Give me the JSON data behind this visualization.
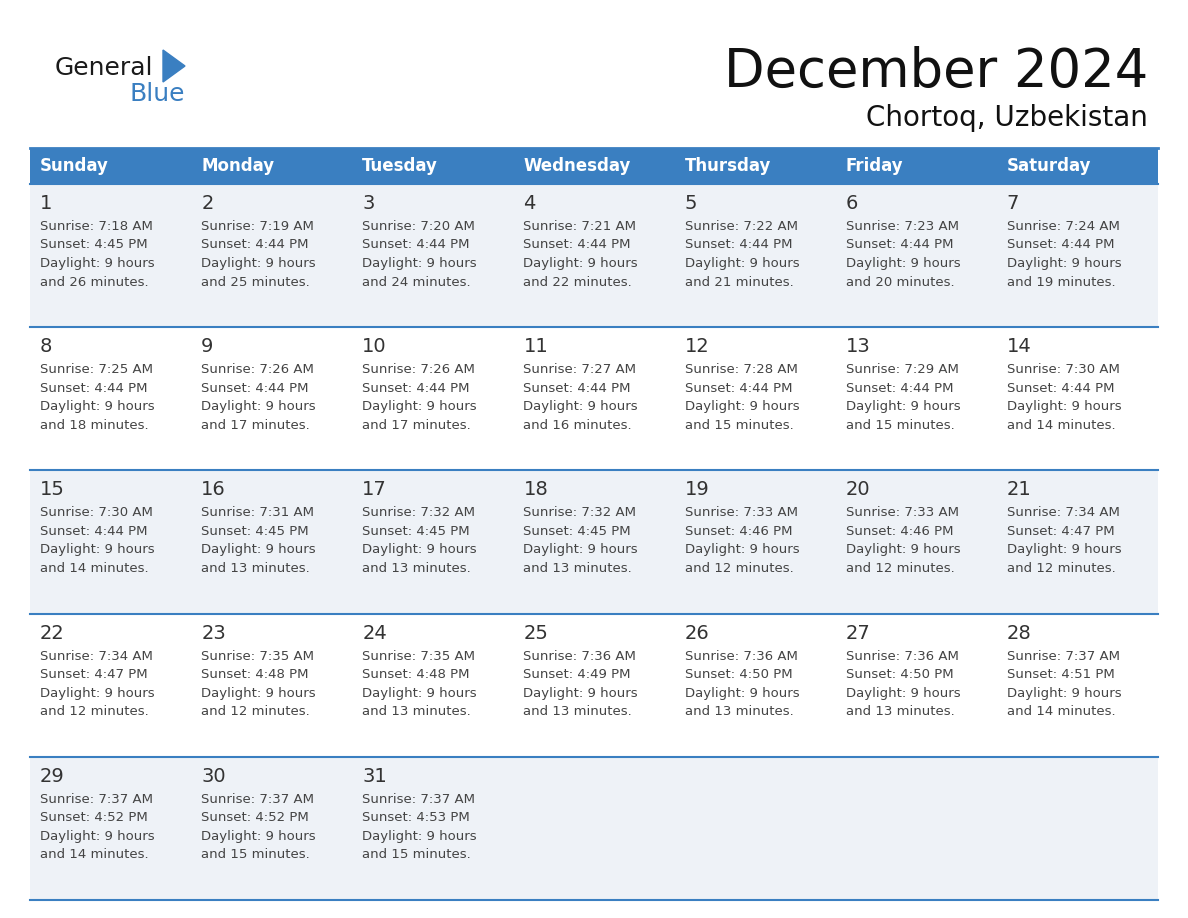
{
  "title": "December 2024",
  "subtitle": "Chortoq, Uzbekistan",
  "header_bg": "#3a7fc1",
  "header_text_color": "#FFFFFF",
  "row_bg_even": "#eef2f7",
  "row_bg_odd": "#FFFFFF",
  "border_color": "#3a7fc1",
  "text_color": "#444444",
  "day_num_color": "#333333",
  "days_of_week": [
    "Sunday",
    "Monday",
    "Tuesday",
    "Wednesday",
    "Thursday",
    "Friday",
    "Saturday"
  ],
  "weeks": [
    [
      {
        "day": 1,
        "sunrise": "7:18 AM",
        "sunset": "4:45 PM",
        "daylight": "9 hours and 26 minutes."
      },
      {
        "day": 2,
        "sunrise": "7:19 AM",
        "sunset": "4:44 PM",
        "daylight": "9 hours and 25 minutes."
      },
      {
        "day": 3,
        "sunrise": "7:20 AM",
        "sunset": "4:44 PM",
        "daylight": "9 hours and 24 minutes."
      },
      {
        "day": 4,
        "sunrise": "7:21 AM",
        "sunset": "4:44 PM",
        "daylight": "9 hours and 22 minutes."
      },
      {
        "day": 5,
        "sunrise": "7:22 AM",
        "sunset": "4:44 PM",
        "daylight": "9 hours and 21 minutes."
      },
      {
        "day": 6,
        "sunrise": "7:23 AM",
        "sunset": "4:44 PM",
        "daylight": "9 hours and 20 minutes."
      },
      {
        "day": 7,
        "sunrise": "7:24 AM",
        "sunset": "4:44 PM",
        "daylight": "9 hours and 19 minutes."
      }
    ],
    [
      {
        "day": 8,
        "sunrise": "7:25 AM",
        "sunset": "4:44 PM",
        "daylight": "9 hours and 18 minutes."
      },
      {
        "day": 9,
        "sunrise": "7:26 AM",
        "sunset": "4:44 PM",
        "daylight": "9 hours and 17 minutes."
      },
      {
        "day": 10,
        "sunrise": "7:26 AM",
        "sunset": "4:44 PM",
        "daylight": "9 hours and 17 minutes."
      },
      {
        "day": 11,
        "sunrise": "7:27 AM",
        "sunset": "4:44 PM",
        "daylight": "9 hours and 16 minutes."
      },
      {
        "day": 12,
        "sunrise": "7:28 AM",
        "sunset": "4:44 PM",
        "daylight": "9 hours and 15 minutes."
      },
      {
        "day": 13,
        "sunrise": "7:29 AM",
        "sunset": "4:44 PM",
        "daylight": "9 hours and 15 minutes."
      },
      {
        "day": 14,
        "sunrise": "7:30 AM",
        "sunset": "4:44 PM",
        "daylight": "9 hours and 14 minutes."
      }
    ],
    [
      {
        "day": 15,
        "sunrise": "7:30 AM",
        "sunset": "4:44 PM",
        "daylight": "9 hours and 14 minutes."
      },
      {
        "day": 16,
        "sunrise": "7:31 AM",
        "sunset": "4:45 PM",
        "daylight": "9 hours and 13 minutes."
      },
      {
        "day": 17,
        "sunrise": "7:32 AM",
        "sunset": "4:45 PM",
        "daylight": "9 hours and 13 minutes."
      },
      {
        "day": 18,
        "sunrise": "7:32 AM",
        "sunset": "4:45 PM",
        "daylight": "9 hours and 13 minutes."
      },
      {
        "day": 19,
        "sunrise": "7:33 AM",
        "sunset": "4:46 PM",
        "daylight": "9 hours and 12 minutes."
      },
      {
        "day": 20,
        "sunrise": "7:33 AM",
        "sunset": "4:46 PM",
        "daylight": "9 hours and 12 minutes."
      },
      {
        "day": 21,
        "sunrise": "7:34 AM",
        "sunset": "4:47 PM",
        "daylight": "9 hours and 12 minutes."
      }
    ],
    [
      {
        "day": 22,
        "sunrise": "7:34 AM",
        "sunset": "4:47 PM",
        "daylight": "9 hours and 12 minutes."
      },
      {
        "day": 23,
        "sunrise": "7:35 AM",
        "sunset": "4:48 PM",
        "daylight": "9 hours and 12 minutes."
      },
      {
        "day": 24,
        "sunrise": "7:35 AM",
        "sunset": "4:48 PM",
        "daylight": "9 hours and 13 minutes."
      },
      {
        "day": 25,
        "sunrise": "7:36 AM",
        "sunset": "4:49 PM",
        "daylight": "9 hours and 13 minutes."
      },
      {
        "day": 26,
        "sunrise": "7:36 AM",
        "sunset": "4:50 PM",
        "daylight": "9 hours and 13 minutes."
      },
      {
        "day": 27,
        "sunrise": "7:36 AM",
        "sunset": "4:50 PM",
        "daylight": "9 hours and 13 minutes."
      },
      {
        "day": 28,
        "sunrise": "7:37 AM",
        "sunset": "4:51 PM",
        "daylight": "9 hours and 14 minutes."
      }
    ],
    [
      {
        "day": 29,
        "sunrise": "7:37 AM",
        "sunset": "4:52 PM",
        "daylight": "9 hours and 14 minutes."
      },
      {
        "day": 30,
        "sunrise": "7:37 AM",
        "sunset": "4:52 PM",
        "daylight": "9 hours and 15 minutes."
      },
      {
        "day": 31,
        "sunrise": "7:37 AM",
        "sunset": "4:53 PM",
        "daylight": "9 hours and 15 minutes."
      },
      null,
      null,
      null,
      null
    ]
  ],
  "logo_general_color": "#1a1a1a",
  "logo_blue_color": "#3a7fc1"
}
